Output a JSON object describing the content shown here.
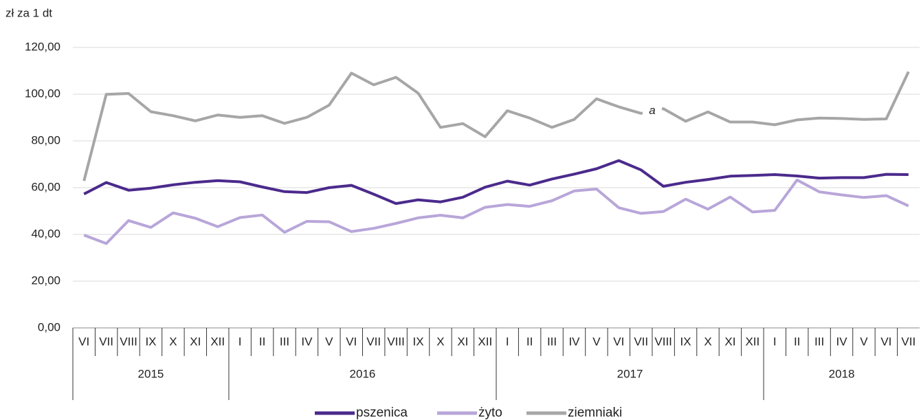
{
  "chart_data": {
    "type": "line",
    "y_axis_label": "zł za 1 dt",
    "annotation": "a",
    "categories": [
      "VI",
      "VII",
      "VIII",
      "IX",
      "X",
      "XI",
      "XII",
      "I",
      "II",
      "III",
      "IV",
      "V",
      "VI",
      "VII",
      "VIII",
      "IX",
      "X",
      "XI",
      "XII",
      "I",
      "II",
      "III",
      "IV",
      "V",
      "VI",
      "VII",
      "VIII",
      "IX",
      "X",
      "XI",
      "XII",
      "I",
      "II",
      "III",
      "IV",
      "V",
      "VI",
      "VII"
    ],
    "years": [
      "2015",
      "2016",
      "2017",
      "2018"
    ],
    "series": [
      {
        "name": "pszenica",
        "color": "#4b2a8c",
        "values": [
          57.3,
          62.2,
          58.9,
          59.8,
          61.2,
          62.3,
          63.0,
          62.5,
          60.3,
          58.3,
          57.9,
          60.0,
          61.0,
          57.2,
          53.2,
          54.8,
          53.9,
          55.9,
          60.2,
          62.8,
          61.1,
          63.7,
          65.8,
          68.1,
          71.6,
          67.6,
          60.6,
          62.3,
          63.5,
          64.9,
          65.2,
          65.6,
          65.0,
          64.1,
          64.3,
          64.3,
          65.7,
          65.6
        ]
      },
      {
        "name": "żyto",
        "color": "#b8a6d9",
        "values": [
          39.7,
          36.1,
          45.9,
          43.0,
          49.2,
          46.9,
          43.3,
          47.2,
          48.3,
          40.9,
          45.6,
          45.4,
          41.2,
          42.6,
          44.7,
          47.1,
          48.2,
          47.1,
          51.6,
          52.8,
          52.0,
          54.4,
          58.6,
          59.4,
          51.4,
          49.0,
          49.8,
          55.1,
          50.8,
          56.0,
          49.6,
          50.3,
          63.3,
          58.2,
          56.9,
          55.8,
          56.6,
          52.2
        ]
      },
      {
        "name": "ziemniaki",
        "color": "#a6a6a6",
        "values": [
          62.9,
          99.9,
          100.3,
          92.5,
          90.8,
          88.6,
          91.1,
          90.1,
          90.8,
          87.5,
          90.1,
          95.3,
          109.0,
          104.0,
          107.2,
          100.4,
          85.8,
          87.4,
          81.8,
          92.9,
          89.8,
          85.8,
          89.2,
          98.0,
          94.6,
          91.8,
          93.8,
          88.4,
          92.4,
          88.1,
          88.1,
          86.9,
          89.0,
          89.8,
          89.6,
          89.2,
          89.4,
          109.6
        ]
      }
    ],
    "ylim": [
      0,
      120
    ],
    "yticks": [
      {
        "value": 0,
        "label": "0,00"
      },
      {
        "value": 20,
        "label": "20,00"
      },
      {
        "value": 40,
        "label": "40,00"
      },
      {
        "value": 60,
        "label": "60,00"
      },
      {
        "value": 80,
        "label": "80,00"
      },
      {
        "value": 100,
        "label": "100,00"
      },
      {
        "value": 120,
        "label": "120,00"
      }
    ],
    "grid": true,
    "legend": "bottom"
  }
}
